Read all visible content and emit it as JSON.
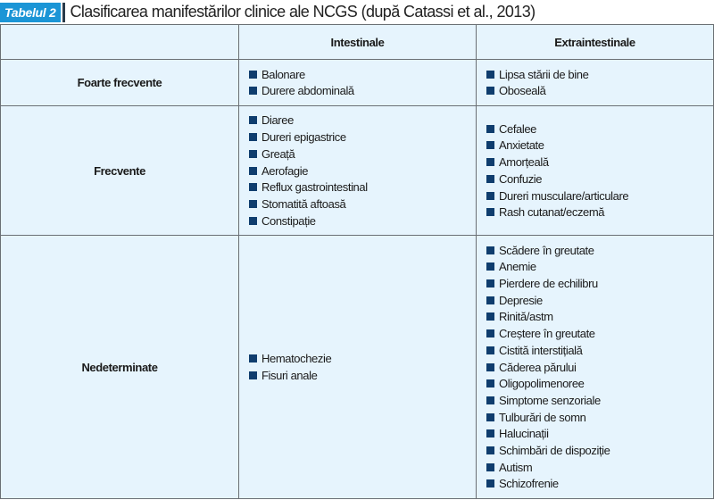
{
  "title": {
    "badge": "Tabelul 2",
    "text": "Clasificarea manifestărilor clinice ale NCGS (după Catassi et al., 2013)"
  },
  "table": {
    "headers": [
      "",
      "Intestinale",
      "Extraintestinale"
    ],
    "rows": [
      {
        "category": "Foarte frecvente",
        "intestinal": [
          "Balonare",
          "Durere abdominală"
        ],
        "extraintestinal": [
          "Lipsa stării de bine",
          "Oboseală"
        ]
      },
      {
        "category": "Frecvente",
        "intestinal": [
          "Diaree",
          "Dureri epigastrice",
          "Greață",
          "Aerofagie",
          "Reflux gastrointestinal",
          "Stomatită aftoasă",
          "Constipație"
        ],
        "extraintestinal": [
          "Cefalee",
          "Anxietate",
          "Amorțeală",
          "Confuzie",
          "Dureri musculare/articulare",
          "Rash cutanat/eczemă"
        ]
      },
      {
        "category": "Nedeterminate",
        "intestinal": [
          "Hematochezie",
          "Fisuri anale"
        ],
        "extraintestinal": [
          "Scădere în greutate",
          "Anemie",
          "Pierdere de echilibru",
          "Depresie",
          "Rinită/astm",
          "Creștere în greutate",
          "Cistită interstițială",
          "Căderea părului",
          "Oligopolimenoree",
          "Simptome senzoriale",
          "Tulburări de somn",
          "Halucinații",
          "Schimbări de dispoziție",
          "Autism",
          "Schizofrenie"
        ]
      }
    ]
  },
  "colors": {
    "badge": "#1b95d6",
    "cell_bg": "#e6f4fd",
    "bullet": "#0f3d6e"
  }
}
